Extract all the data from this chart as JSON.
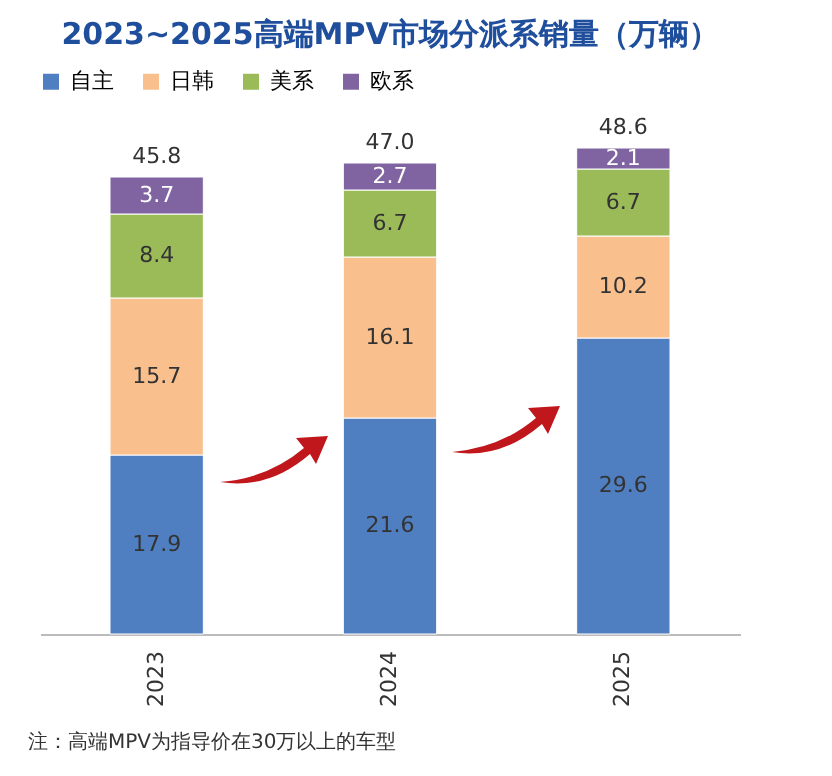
{
  "chart_data": {
    "type": "bar",
    "title": "2023~2025高端MPV市场分派系销量（万辆）",
    "categories": [
      "2023",
      "2024",
      "2025"
    ],
    "stacked": true,
    "data_labels": true,
    "legend": "top",
    "totals": [
      "45.8",
      "47.0",
      "48.6"
    ],
    "series": [
      {
        "name": "自主",
        "color": "#4f7fc0",
        "values": [
          17.9,
          21.6,
          29.6
        ]
      },
      {
        "name": "日韩",
        "color": "#f9c08e",
        "values": [
          15.7,
          16.1,
          10.2
        ]
      },
      {
        "name": "美系",
        "color": "#9bbb59",
        "values": [
          8.4,
          6.7,
          6.7
        ]
      },
      {
        "name": "欧系",
        "color": "#8064a2",
        "values": [
          3.7,
          2.7,
          2.1
        ]
      }
    ],
    "annotations": [
      "注：高端MPV为指导价在30万以上的车型"
    ]
  }
}
